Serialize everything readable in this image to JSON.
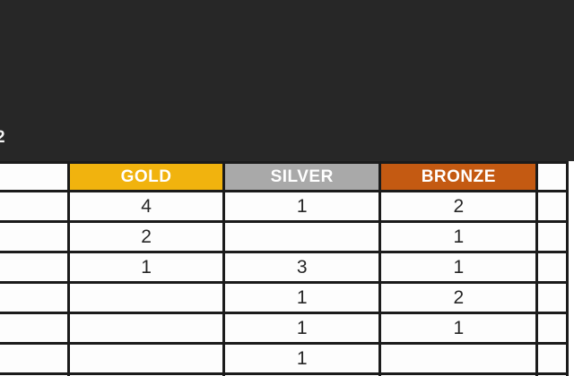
{
  "page": {
    "cropped_text": "2",
    "background_dark": "#272727"
  },
  "colors": {
    "gold_header_bg": "#F1B30E",
    "silver_header_bg": "#A9A9A9",
    "bronze_header_bg": "#C45A12",
    "grid_border": "#1B1B1B",
    "cell_bg": "#FDFDFD",
    "header_text": "#FFFFFF",
    "number_text": "#262626"
  },
  "chart_data": {
    "type": "table",
    "title": "",
    "columns": [
      "",
      "GOLD",
      "SILVER",
      "BRONZE",
      ""
    ],
    "rows": [
      [
        "",
        "4",
        "1",
        "2",
        ""
      ],
      [
        "",
        "2",
        "",
        "1",
        ""
      ],
      [
        "",
        "1",
        "3",
        "1",
        ""
      ],
      [
        "",
        "",
        "1",
        "2",
        ""
      ],
      [
        "",
        "",
        "1",
        "1",
        ""
      ],
      [
        "",
        "",
        "1",
        "",
        ""
      ]
    ]
  }
}
